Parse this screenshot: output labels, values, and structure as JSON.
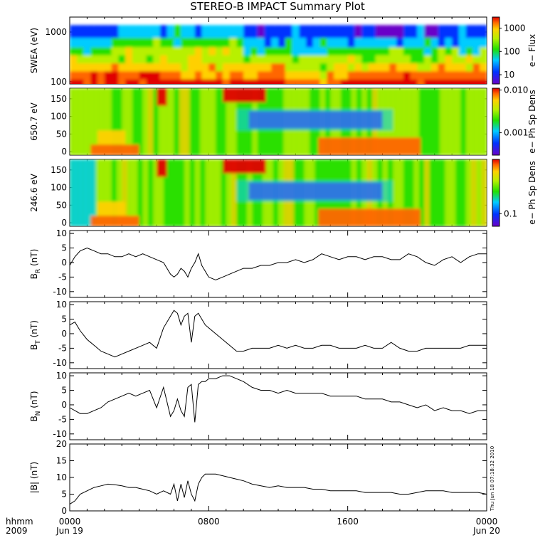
{
  "title": "STEREO-B IMPACT Summary Plot",
  "timestamp": "Thu Jun 18 07:18:32 2010",
  "footer": {
    "hhmm": "hhmm",
    "year": "2009",
    "x_ticks": [
      {
        "label": "0000",
        "sub": "Jun 19",
        "hour": 0
      },
      {
        "label": "0800",
        "sub": "",
        "hour": 8
      },
      {
        "label": "1600",
        "sub": "",
        "hour": 16
      },
      {
        "label": "0000",
        "sub": "Jun 20",
        "hour": 24
      }
    ]
  },
  "colors": {
    "trace": "#000000",
    "frame": "#000000"
  },
  "chart_data": [
    {
      "type": "heatmap",
      "ylabel": "SWEA (eV)",
      "yscale": "log",
      "ylim": [
        90,
        2000
      ],
      "yticks": [
        {
          "v": 1000,
          "label": "1000"
        },
        {
          "v": 100,
          "label": "100"
        }
      ],
      "colorbar": {
        "label": "e− Flux",
        "scale": "log",
        "range": [
          4,
          3000
        ],
        "ticks": [
          {
            "v": 1000,
            "label": "1000"
          },
          {
            "v": 100,
            "label": "100"
          },
          {
            "v": 10,
            "label": "10"
          }
        ]
      }
    },
    {
      "type": "heatmap",
      "ylabel": "650.7 eV",
      "ylim": [
        -10,
        180
      ],
      "yticks": [
        {
          "v": 150,
          "label": "150"
        },
        {
          "v": 100,
          "label": "100"
        },
        {
          "v": 50,
          "label": "50"
        },
        {
          "v": 0,
          "label": "0"
        }
      ],
      "colorbar": {
        "label": "e− Ph Sp Dens",
        "scale": "log",
        "range": [
          0.0003,
          0.011
        ],
        "ticks": [
          {
            "v": 0.01,
            "label": "0.010"
          },
          {
            "v": 0.001,
            "label": "0.001"
          }
        ]
      }
    },
    {
      "type": "heatmap",
      "ylabel": "246.6 eV",
      "ylim": [
        -10,
        180
      ],
      "yticks": [
        {
          "v": 150,
          "label": "150"
        },
        {
          "v": 100,
          "label": "100"
        },
        {
          "v": 50,
          "label": "50"
        },
        {
          "v": 0,
          "label": "0"
        }
      ],
      "colorbar": {
        "label": "e− Ph Sp Dens",
        "scale": "log",
        "range": [
          0.05,
          2
        ],
        "ticks": [
          {
            "v": 0.1,
            "label": "0.1"
          }
        ]
      }
    },
    {
      "type": "line",
      "ylabel": "B",
      "ysub": "R",
      "yunit": " (nT)",
      "ylim": [
        -12,
        11
      ],
      "yticks": [
        {
          "v": 10,
          "label": "10"
        },
        {
          "v": 5,
          "label": "5"
        },
        {
          "v": 0,
          "label": "0"
        },
        {
          "v": -5,
          "label": "-5"
        },
        {
          "v": -10,
          "label": "-10"
        }
      ],
      "x": [
        0,
        0.3,
        0.6,
        1.0,
        1.4,
        1.8,
        2.2,
        2.6,
        3.0,
        3.4,
        3.8,
        4.2,
        4.6,
        5.0,
        5.4,
        5.8,
        6.0,
        6.2,
        6.4,
        6.6,
        6.8,
        7.0,
        7.2,
        7.4,
        7.6,
        7.8,
        8.0,
        8.4,
        8.8,
        9.2,
        9.6,
        10.0,
        10.5,
        11.0,
        11.5,
        12.0,
        12.5,
        13.0,
        13.5,
        14.0,
        14.5,
        15.0,
        15.5,
        16.0,
        16.5,
        17.0,
        17.5,
        18.0,
        18.5,
        19.0,
        19.5,
        20.0,
        20.5,
        21.0,
        21.5,
        22.0,
        22.5,
        23.0,
        23.5,
        24.0
      ],
      "y": [
        -1,
        2,
        4,
        5,
        4,
        3,
        3,
        2,
        2,
        3,
        2,
        3,
        2,
        1,
        0,
        -4,
        -5,
        -4,
        -2,
        -3,
        -5,
        -2,
        0,
        3,
        -1,
        -3,
        -5,
        -6,
        -5,
        -4,
        -3,
        -2,
        -2,
        -1,
        -1,
        0,
        0,
        1,
        0,
        1,
        3,
        2,
        1,
        2,
        2,
        1,
        2,
        2,
        1,
        1,
        3,
        2,
        0,
        -1,
        1,
        2,
        0,
        2,
        3,
        3
      ]
    },
    {
      "type": "line",
      "ylabel": "B",
      "ysub": "T",
      "yunit": " (nT)",
      "ylim": [
        -12,
        11
      ],
      "yticks": [
        {
          "v": 10,
          "label": "10"
        },
        {
          "v": 5,
          "label": "5"
        },
        {
          "v": 0,
          "label": "0"
        },
        {
          "v": -5,
          "label": "-5"
        },
        {
          "v": -10,
          "label": "-10"
        }
      ],
      "x": [
        0,
        0.3,
        0.6,
        1.0,
        1.4,
        1.8,
        2.2,
        2.6,
        3.0,
        3.4,
        3.8,
        4.2,
        4.6,
        5.0,
        5.4,
        5.8,
        6.0,
        6.2,
        6.4,
        6.6,
        6.8,
        7.0,
        7.2,
        7.4,
        7.6,
        7.8,
        8.0,
        8.4,
        8.8,
        9.2,
        9.6,
        10.0,
        10.5,
        11.0,
        11.5,
        12.0,
        12.5,
        13.0,
        13.5,
        14.0,
        14.5,
        15.0,
        15.5,
        16.0,
        16.5,
        17.0,
        17.5,
        18.0,
        18.5,
        19.0,
        19.5,
        20.0,
        20.5,
        21.0,
        21.5,
        22.0,
        22.5,
        23.0,
        23.5,
        24.0
      ],
      "y": [
        3,
        4,
        1,
        -2,
        -4,
        -6,
        -7,
        -8,
        -7,
        -6,
        -5,
        -4,
        -3,
        -5,
        2,
        6,
        8,
        7,
        3,
        6,
        7,
        -3,
        6,
        7,
        5,
        3,
        2,
        0,
        -2,
        -4,
        -6,
        -6,
        -5,
        -5,
        -5,
        -4,
        -5,
        -4,
        -5,
        -5,
        -4,
        -4,
        -5,
        -5,
        -5,
        -4,
        -5,
        -5,
        -3,
        -5,
        -6,
        -6,
        -5,
        -5,
        -5,
        -5,
        -5,
        -4,
        -4,
        -4
      ]
    },
    {
      "type": "line",
      "ylabel": "B",
      "ysub": "N",
      "yunit": " (nT)",
      "ylim": [
        -12,
        11
      ],
      "yticks": [
        {
          "v": 10,
          "label": "10"
        },
        {
          "v": 5,
          "label": "5"
        },
        {
          "v": 0,
          "label": "0"
        },
        {
          "v": -5,
          "label": "-5"
        },
        {
          "v": -10,
          "label": "-10"
        }
      ],
      "x": [
        0,
        0.3,
        0.6,
        1.0,
        1.4,
        1.8,
        2.2,
        2.6,
        3.0,
        3.4,
        3.8,
        4.2,
        4.6,
        5.0,
        5.4,
        5.8,
        6.0,
        6.2,
        6.4,
        6.6,
        6.8,
        7.0,
        7.2,
        7.4,
        7.6,
        7.8,
        8.0,
        8.4,
        8.8,
        9.2,
        9.6,
        10.0,
        10.5,
        11.0,
        11.5,
        12.0,
        12.5,
        13.0,
        13.5,
        14.0,
        14.5,
        15.0,
        15.5,
        16.0,
        16.5,
        17.0,
        17.5,
        18.0,
        18.5,
        19.0,
        19.5,
        20.0,
        20.5,
        21.0,
        21.5,
        22.0,
        22.5,
        23.0,
        23.5,
        24.0
      ],
      "y": [
        -1,
        -2,
        -3,
        -3,
        -2,
        -1,
        1,
        2,
        3,
        4,
        3,
        4,
        5,
        -1,
        6,
        -4,
        -2,
        2,
        -2,
        -4,
        6,
        7,
        -6,
        7,
        8,
        8,
        9,
        9,
        10,
        10,
        9,
        8,
        6,
        5,
        5,
        4,
        5,
        4,
        4,
        4,
        4,
        3,
        3,
        3,
        3,
        2,
        2,
        2,
        1,
        1,
        0,
        -1,
        0,
        -2,
        -1,
        -2,
        -2,
        -3,
        -2,
        -2
      ]
    },
    {
      "type": "line",
      "ylabel": "|B|",
      "ysub": "",
      "yunit": " (nT)",
      "ylim": [
        0,
        20
      ],
      "yticks": [
        {
          "v": 20,
          "label": "20"
        },
        {
          "v": 15,
          "label": "15"
        },
        {
          "v": 10,
          "label": "10"
        },
        {
          "v": 5,
          "label": "5"
        },
        {
          "v": 0,
          "label": "0"
        }
      ],
      "x": [
        0,
        0.3,
        0.6,
        1.0,
        1.4,
        1.8,
        2.2,
        2.6,
        3.0,
        3.4,
        3.8,
        4.2,
        4.6,
        5.0,
        5.4,
        5.8,
        6.0,
        6.2,
        6.4,
        6.6,
        6.8,
        7.0,
        7.2,
        7.4,
        7.6,
        7.8,
        8.0,
        8.4,
        8.8,
        9.2,
        9.6,
        10.0,
        10.5,
        11.0,
        11.5,
        12.0,
        12.5,
        13.0,
        13.5,
        14.0,
        14.5,
        15.0,
        15.5,
        16.0,
        16.5,
        17.0,
        17.5,
        18.0,
        18.5,
        19.0,
        19.5,
        20.0,
        20.5,
        21.0,
        21.5,
        22.0,
        22.5,
        23.0,
        23.5,
        24.0
      ],
      "y": [
        2,
        3,
        5,
        6,
        7,
        7.5,
        8,
        7.8,
        7.5,
        7,
        7,
        6.5,
        6,
        5,
        6,
        5,
        8,
        3,
        8,
        4,
        9,
        5,
        3,
        8,
        10,
        11,
        11,
        11,
        10.5,
        10,
        9.5,
        9,
        8,
        7.5,
        7,
        7.5,
        7,
        7,
        7,
        6.5,
        6.5,
        6,
        6,
        6,
        6,
        5.5,
        5.5,
        5.5,
        5.5,
        5,
        5,
        5.5,
        6,
        6,
        6,
        5.5,
        5.5,
        5.5,
        5.5,
        5
      ]
    }
  ]
}
